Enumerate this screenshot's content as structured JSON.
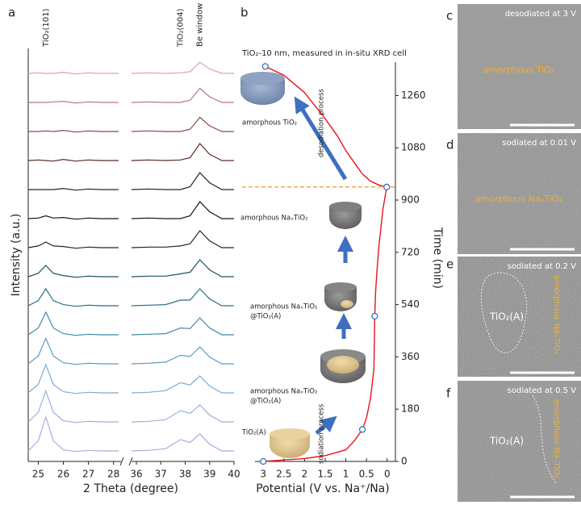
{
  "panel_labels": [
    "a",
    "b",
    "c",
    "d",
    "e",
    "f"
  ],
  "chart_data": [
    {
      "type": "line",
      "xlabel": "2 Theta (degree)",
      "ylabel": "Intensity (a.u.)",
      "segments": [
        {
          "xlim": [
            24.6,
            28.3
          ],
          "xticks": [
            25,
            26,
            27,
            28
          ]
        },
        {
          "xlim": [
            35.8,
            40
          ],
          "xticks": [
            36,
            37,
            38,
            39,
            40
          ]
        }
      ],
      "annotations": [
        {
          "text": "TiO₂(101)",
          "x": 25.3
        },
        {
          "text": "TiO₂(004)",
          "x": 37.8
        },
        {
          "text": "Be window",
          "x": 38.6
        }
      ],
      "x": [
        24.6,
        25.0,
        25.3,
        25.6,
        26.0,
        26.5,
        27.0,
        27.5,
        28.2,
        35.8,
        36.5,
        37.2,
        37.8,
        38.2,
        38.6,
        39.0,
        39.5,
        40
      ],
      "series": [
        {
          "color": "#b0a8e0",
          "values": [
            1,
            2.8,
            7,
            2.8,
            1.2,
            0.9,
            1.1,
            1,
            1,
            1,
            1.1,
            1.4,
            3,
            2.5,
            4,
            2.2,
            1,
            1
          ]
        },
        {
          "color": "#9ab0dc",
          "values": [
            1,
            2.7,
            6.5,
            2.7,
            1.2,
            0.9,
            1.1,
            1,
            1,
            1,
            1.1,
            1.4,
            3,
            2.5,
            4,
            2.2,
            1,
            1
          ]
        },
        {
          "color": "#7aaed0",
          "values": [
            1,
            2.5,
            6,
            2.5,
            1.2,
            0.9,
            1.1,
            1,
            1,
            1,
            1.1,
            1.4,
            2.8,
            2.4,
            4,
            2.2,
            1,
            1
          ]
        },
        {
          "color": "#5a9cc0",
          "values": [
            1,
            2.4,
            5.5,
            2.4,
            1.2,
            0.9,
            1.1,
            1,
            1,
            1,
            1.1,
            1.3,
            2.5,
            2.3,
            4,
            2.2,
            1,
            1
          ]
        },
        {
          "color": "#3d88a8",
          "values": [
            1,
            2.2,
            5,
            2.2,
            1.2,
            0.9,
            1.1,
            1,
            1,
            1,
            1.1,
            1.2,
            2.2,
            2.1,
            4,
            2.2,
            1,
            1
          ]
        },
        {
          "color": "#2c6e85",
          "values": [
            1,
            1.9,
            4,
            1.9,
            1.2,
            0.9,
            1.1,
            1,
            1,
            1,
            1.1,
            1.2,
            2,
            2,
            4,
            2.2,
            1,
            1
          ]
        },
        {
          "color": "#1f5060",
          "values": [
            1,
            1.6,
            3,
            1.6,
            1.2,
            0.9,
            1.1,
            1,
            1,
            1,
            1.1,
            1.1,
            1.5,
            1.8,
            4,
            2.2,
            1,
            1
          ]
        },
        {
          "color": "#152a30",
          "values": [
            1,
            1.3,
            2,
            1.3,
            1.2,
            0.9,
            1.1,
            1,
            1,
            1,
            1.1,
            1.1,
            1.3,
            1.7,
            4,
            2.2,
            1,
            1
          ]
        },
        {
          "color": "#1a1414",
          "values": [
            1,
            1.1,
            1.5,
            1.1,
            1.2,
            0.9,
            1.1,
            1,
            1,
            1,
            1.1,
            1,
            1,
            1.5,
            4,
            2.2,
            1,
            1
          ]
        },
        {
          "color": "#3a1e1c",
          "values": [
            1,
            1,
            1,
            1,
            1.2,
            0.9,
            1.1,
            1,
            1,
            1,
            1.1,
            1,
            1,
            1.5,
            4,
            2.2,
            1,
            1
          ]
        },
        {
          "color": "#5e2a26",
          "values": [
            1,
            1.1,
            1,
            0.9,
            1.2,
            0.9,
            1.1,
            1,
            1,
            1,
            1.1,
            1,
            1.1,
            1.5,
            4,
            2.1,
            1,
            1
          ]
        },
        {
          "color": "#8a4a48",
          "values": [
            1,
            1,
            1.1,
            1,
            1.2,
            0.9,
            1.1,
            1,
            1,
            1,
            1.1,
            1,
            1,
            1.4,
            3.5,
            2,
            1,
            1
          ]
        },
        {
          "color": "#b87878",
          "values": [
            1,
            1,
            1,
            1.1,
            1.2,
            0.9,
            1.1,
            1,
            1,
            1,
            1.1,
            1,
            1,
            1.4,
            3.5,
            2,
            1,
            1
          ]
        },
        {
          "color": "#e0a0a8",
          "values": [
            1,
            1.1,
            1,
            1,
            1.2,
            0.9,
            1.1,
            1,
            1,
            1,
            1.1,
            1,
            1.1,
            1.3,
            3,
            1.8,
            1,
            1
          ]
        }
      ]
    },
    {
      "type": "line",
      "title": "TiO₂-10 nm, measured in in-situ XRD cell",
      "xlabel": "Potential (V vs. Na⁺/Na)",
      "ylabel": "Time (min)",
      "xlim": [
        3.2,
        -0.2
      ],
      "xticks": [
        3,
        2.5,
        2,
        1.5,
        1,
        0.5,
        0
      ],
      "ylim": [
        0,
        1375
      ],
      "yticks": [
        0,
        180,
        360,
        540,
        720,
        900,
        1080,
        1260
      ],
      "x": [
        3,
        2.5,
        2,
        1.5,
        1,
        0.8,
        0.6,
        0.5,
        0.4,
        0.32,
        0.3,
        0.28,
        0.25,
        0.2,
        0.1,
        0.01,
        0.2,
        0.4,
        0.6,
        0.8,
        1,
        1.2,
        1.5,
        2,
        2.5,
        2.95
      ],
      "series": [
        {
          "color": "#e8141c",
          "values": [
            0,
            5,
            10,
            20,
            40,
            70,
            110,
            150,
            220,
            320,
            500,
            580,
            650,
            740,
            870,
            945,
            952,
            965,
            990,
            1030,
            1070,
            1120,
            1180,
            1270,
            1330,
            1360
          ]
        }
      ],
      "markers": {
        "color": "#3a6fc0",
        "x": [
          2.95,
          0.01,
          0.3,
          0.6,
          3
        ],
        "values": [
          1360,
          945,
          500,
          110,
          0
        ]
      },
      "hline": {
        "value": 945,
        "color": "#e8900c"
      },
      "annotations": [
        "desodiation process",
        "sodiation process",
        "amorphous TiO₂",
        "amorphous NaₓTiO₂",
        "amorphous NaₓTiO₂",
        "@TiO₂(A)",
        "amorphous NaₓTiO₂",
        "@TiO₂(A)",
        "TiO₂(A)"
      ]
    }
  ],
  "images": [
    {
      "caption": "desodiated at 3 V",
      "annotation": "amorphous TiO₂"
    },
    {
      "caption": "sodiated at 0.01 V",
      "annotation": "amorphous NaₓTiO₂"
    },
    {
      "caption": "sodiated at 0.2 V",
      "label": "TiO₂(A)",
      "annotation": "amorphous NaₓTiO₂"
    },
    {
      "caption": "sodiated at 0.5 V",
      "label": "TiO₂(A)",
      "annotation": "amorphous NaₓTiO₂"
    }
  ]
}
